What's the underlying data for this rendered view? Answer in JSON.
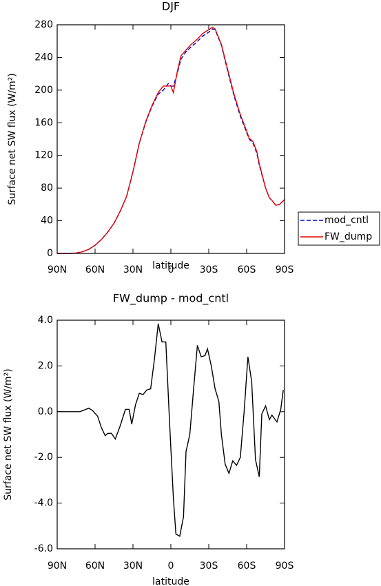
{
  "chart_data": [
    {
      "type": "line",
      "title": "DJF",
      "ylabel": "Surface net SW flux (W/m²)",
      "xlabel": "latitude",
      "x": [
        90,
        85,
        80,
        75,
        70,
        65,
        60,
        55,
        50,
        45,
        40,
        35,
        30,
        25,
        20,
        15,
        10,
        6,
        2,
        0,
        -2,
        -5,
        -8,
        -12,
        -16,
        -20,
        -25,
        -30,
        -33,
        -35,
        -40,
        -45,
        -50,
        -55,
        -60,
        -62,
        -65,
        -68,
        -70,
        -75,
        -78,
        -80,
        -83,
        -86,
        -90
      ],
      "series": [
        {
          "name": "mod_cntl",
          "color": "#0000cc",
          "dash": true,
          "values": [
            0,
            0,
            0,
            0.5,
            2,
            5,
            10,
            17,
            26,
            37,
            52,
            70,
            100,
            135,
            160,
            180,
            195,
            200,
            208,
            205,
            205,
            220,
            238,
            247,
            253,
            258,
            266,
            271,
            275,
            274,
            255,
            223,
            193,
            168,
            148,
            140,
            135,
            123,
            108,
            80,
            68,
            65,
            59,
            60,
            66
          ]
        },
        {
          "name": "FW_dump",
          "color": "#e00000",
          "dash": false,
          "values": [
            0,
            0,
            0,
            0.5,
            2,
            5,
            10,
            17,
            26,
            37,
            52,
            70,
            100,
            135,
            161,
            181,
            197,
            205,
            205,
            205,
            197,
            222,
            242,
            249,
            256,
            261,
            269,
            274,
            277,
            275,
            256,
            225,
            195,
            170,
            150,
            141,
            137,
            125,
            110,
            80,
            68,
            65,
            59,
            60,
            66
          ]
        }
      ],
      "xlim": [
        90,
        -90
      ],
      "xticks": [
        {
          "value": 90,
          "label": "90N"
        },
        {
          "value": 60,
          "label": "60N"
        },
        {
          "value": 30,
          "label": "30N"
        },
        0,
        {
          "value": -30,
          "label": "30S"
        },
        {
          "value": -60,
          "label": "60S"
        },
        {
          "value": -90,
          "label": "90S"
        }
      ],
      "ylim": [
        0,
        280
      ],
      "yticks": [
        0,
        40,
        80,
        120,
        160,
        200,
        240,
        280
      ],
      "legend": "right"
    },
    {
      "type": "line",
      "title": "FW_dump - mod_cntl",
      "ylabel": "Surface net SW flux (W/m²)",
      "xlabel": "latitude",
      "color": "#000000",
      "x": [
        90,
        85,
        80,
        75,
        72,
        65,
        62,
        58,
        55,
        52,
        50,
        47,
        44,
        40,
        36,
        33,
        31,
        28,
        25,
        22,
        19,
        16,
        13,
        10,
        7,
        4,
        1,
        -2,
        -4,
        -7,
        -10,
        -12,
        -15,
        -18,
        -21,
        -24,
        -27,
        -29,
        -32,
        -35,
        -38,
        -40,
        -43,
        -46,
        -49,
        -52,
        -55,
        -58,
        -61,
        -64,
        -67,
        -70,
        -72,
        -75,
        -78,
        -80,
        -84,
        -87,
        -89
      ],
      "values": [
        0,
        0,
        0,
        0,
        0,
        0.15,
        0.05,
        -0.2,
        -0.7,
        -1.05,
        -0.95,
        -0.95,
        -1.2,
        -0.6,
        0.1,
        0.1,
        -0.55,
        0.3,
        0.8,
        0.75,
        0.95,
        1.0,
        2.3,
        3.85,
        3.05,
        3.05,
        -0.5,
        -3.8,
        -5.35,
        -5.45,
        -4.6,
        -1.75,
        -1.0,
        1.0,
        2.9,
        2.4,
        2.45,
        2.75,
        2.0,
        1.0,
        0.45,
        -1.0,
        -2.3,
        -2.7,
        -2.15,
        -2.35,
        -2.0,
        0.0,
        2.4,
        1.3,
        -2.1,
        -2.85,
        -0.1,
        0.25,
        -0.35,
        -0.15,
        -0.45,
        0.1,
        0.95
      ],
      "xlim": [
        90,
        -90
      ],
      "xticks": [
        {
          "value": 90,
          "label": "90N"
        },
        {
          "value": 60,
          "label": "60N"
        },
        {
          "value": 30,
          "label": "30N"
        },
        0,
        {
          "value": -30,
          "label": "30S"
        },
        {
          "value": -60,
          "label": "60S"
        },
        {
          "value": -90,
          "label": "90S"
        }
      ],
      "ylim": [
        -6,
        4
      ],
      "yticks": [
        {
          "value": -6,
          "label": "-6.0"
        },
        {
          "value": -4,
          "label": "-4.0"
        },
        {
          "value": -2,
          "label": "-2.0"
        },
        {
          "value": 0,
          "label": "0.0"
        },
        {
          "value": 2,
          "label": "2.0"
        },
        {
          "value": 4,
          "label": "4.0"
        }
      ]
    }
  ]
}
